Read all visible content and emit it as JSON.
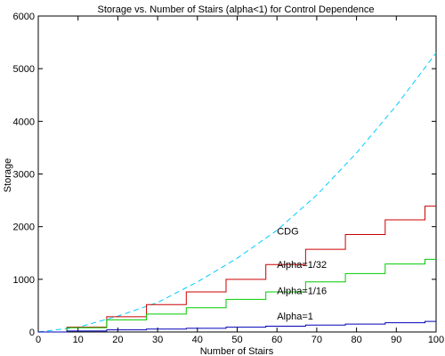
{
  "chart_data": {
    "type": "line",
    "title": "Storage vs. Number of Stairs (alpha<1) for Control Dependence",
    "xlabel": "Number of Stairs",
    "ylabel": "Storage",
    "xlim": [
      0,
      100
    ],
    "ylim": [
      0,
      6000
    ],
    "xticks": [
      0,
      10,
      20,
      30,
      40,
      50,
      60,
      70,
      80,
      90,
      100
    ],
    "yticks": [
      0,
      1000,
      2000,
      3000,
      4000,
      5000,
      6000
    ],
    "grid": false,
    "legend": "none",
    "series": [
      {
        "color": "#00ccff",
        "style": "dashed",
        "x": [
          0,
          10,
          20,
          30,
          40,
          50,
          60,
          70,
          80,
          90,
          100
        ],
        "y": [
          0,
          90,
          300,
          560,
          950,
          1400,
          1930,
          2600,
          3400,
          4300,
          5300
        ]
      },
      {
        "color": "#cc0000",
        "style": "solid-stepped",
        "x": [
          0,
          10,
          20,
          30,
          40,
          50,
          60,
          70,
          80,
          90,
          100
        ],
        "y": [
          0,
          90,
          290,
          520,
          760,
          1000,
          1280,
          1570,
          1850,
          2130,
          2390
        ]
      },
      {
        "color": "#00cc00",
        "style": "solid-stepped",
        "x": [
          0,
          10,
          20,
          30,
          40,
          50,
          60,
          70,
          80,
          90,
          100
        ],
        "y": [
          0,
          80,
          230,
          340,
          460,
          620,
          760,
          950,
          1110,
          1290,
          1380
        ]
      },
      {
        "color": "#0000bb",
        "style": "solid-stepped",
        "x": [
          0,
          10,
          20,
          30,
          40,
          50,
          60,
          70,
          80,
          90,
          100
        ],
        "y": [
          0,
          20,
          40,
          55,
          70,
          90,
          110,
          130,
          150,
          175,
          200
        ]
      }
    ],
    "annotations": [
      {
        "text": "CDG",
        "x": 60,
        "y": 1850
      },
      {
        "text": "Alpha=1/32",
        "x": 60,
        "y": 1220
      },
      {
        "text": "Alpha=1/16",
        "x": 60,
        "y": 720
      },
      {
        "text": "Alpha=1",
        "x": 60,
        "y": 240
      }
    ]
  }
}
